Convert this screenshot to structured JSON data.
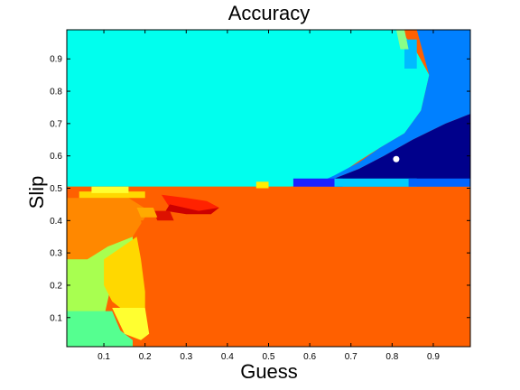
{
  "chart_data": {
    "type": "heatmap",
    "title": "Accuracy",
    "xlabel": "Guess",
    "ylabel": "Slip",
    "xlim": [
      0.01,
      0.99
    ],
    "ylim": [
      0.01,
      0.99
    ],
    "x_ticks": [
      0.1,
      0.2,
      0.3,
      0.4,
      0.5,
      0.6,
      0.7,
      0.8,
      0.9
    ],
    "y_ticks": [
      0.1,
      0.2,
      0.3,
      0.4,
      0.5,
      0.6,
      0.7,
      0.8,
      0.9
    ],
    "x_tick_labels": [
      "0.1",
      "0.2",
      "0.3",
      "0.4",
      "0.5",
      "0.6",
      "0.7",
      "0.8",
      "0.9"
    ],
    "y_tick_labels": [
      "0.1",
      "0.2",
      "0.3",
      "0.4",
      "0.5",
      "0.6",
      "0.7",
      "0.8",
      "0.9"
    ],
    "colormap": "jet",
    "grid": false,
    "legend": "none",
    "regions": [
      {
        "color": "#00ffee",
        "polygon": [
          [
            0.01,
            0.99
          ],
          [
            0.82,
            0.99
          ],
          [
            0.86,
            0.92
          ],
          [
            0.89,
            0.85
          ],
          [
            0.87,
            0.74
          ],
          [
            0.83,
            0.67
          ],
          [
            0.77,
            0.625
          ],
          [
            0.72,
            0.585
          ],
          [
            0.68,
            0.55
          ],
          [
            0.62,
            0.51
          ],
          [
            0.55,
            0.505
          ],
          [
            0.01,
            0.505
          ]
        ]
      },
      {
        "color": "#0080ff",
        "polygon": [
          [
            0.86,
            0.99
          ],
          [
            0.99,
            0.99
          ],
          [
            0.99,
            0.73
          ],
          [
            0.93,
            0.7
          ],
          [
            0.85,
            0.65
          ],
          [
            0.78,
            0.6
          ],
          [
            0.72,
            0.56
          ],
          [
            0.66,
            0.53
          ],
          [
            0.62,
            0.51
          ],
          [
            0.99,
            0.51
          ],
          [
            0.99,
            0.505
          ],
          [
            0.6,
            0.505
          ],
          [
            0.66,
            0.54
          ],
          [
            0.72,
            0.58
          ],
          [
            0.77,
            0.625
          ],
          [
            0.83,
            0.67
          ],
          [
            0.87,
            0.74
          ],
          [
            0.89,
            0.85
          ]
        ]
      },
      {
        "color": "#00008b",
        "polygon": [
          [
            0.99,
            0.73
          ],
          [
            0.99,
            0.51
          ],
          [
            0.63,
            0.51
          ],
          [
            0.66,
            0.53
          ],
          [
            0.72,
            0.56
          ],
          [
            0.78,
            0.6
          ],
          [
            0.85,
            0.65
          ],
          [
            0.93,
            0.7
          ]
        ]
      },
      {
        "color": "#ff6000",
        "polygon": [
          [
            0.01,
            0.505
          ],
          [
            0.99,
            0.505
          ],
          [
            0.99,
            0.01
          ],
          [
            0.01,
            0.01
          ]
        ]
      },
      {
        "color": "#ff8800",
        "polygon": [
          [
            0.01,
            0.47
          ],
          [
            0.16,
            0.47
          ],
          [
            0.21,
            0.43
          ],
          [
            0.17,
            0.35
          ],
          [
            0.12,
            0.31
          ],
          [
            0.05,
            0.27
          ],
          [
            0.01,
            0.27
          ]
        ]
      },
      {
        "color": "#a8ff50",
        "polygon": [
          [
            0.01,
            0.28
          ],
          [
            0.06,
            0.28
          ],
          [
            0.11,
            0.32
          ],
          [
            0.17,
            0.35
          ],
          [
            0.17,
            0.3
          ],
          [
            0.13,
            0.27
          ],
          [
            0.1,
            0.1
          ],
          [
            0.1,
            0.01
          ],
          [
            0.01,
            0.01
          ]
        ]
      },
      {
        "color": "#ffd800",
        "polygon": [
          [
            0.1,
            0.28
          ],
          [
            0.18,
            0.35
          ],
          [
            0.19,
            0.28
          ],
          [
            0.2,
            0.18
          ],
          [
            0.2,
            0.13
          ],
          [
            0.15,
            0.12
          ],
          [
            0.12,
            0.15
          ],
          [
            0.1,
            0.2
          ]
        ]
      },
      {
        "color": "#ffff30",
        "polygon": [
          [
            0.12,
            0.13
          ],
          [
            0.2,
            0.13
          ],
          [
            0.21,
            0.05
          ],
          [
            0.19,
            0.03
          ],
          [
            0.15,
            0.05
          ]
        ]
      },
      {
        "color": "#55ff90",
        "polygon": [
          [
            0.01,
            0.12
          ],
          [
            0.12,
            0.12
          ],
          [
            0.14,
            0.06
          ],
          [
            0.17,
            0.03
          ],
          [
            0.17,
            0.01
          ],
          [
            0.01,
            0.01
          ]
        ]
      },
      {
        "color": "#ff6000",
        "polygon": [
          [
            0.19,
            0.4
          ],
          [
            0.21,
            0.28
          ],
          [
            0.22,
            0.15
          ],
          [
            0.23,
            0.01
          ],
          [
            0.3,
            0.01
          ],
          [
            0.3,
            0.4
          ]
        ]
      },
      {
        "color": "#ff2200",
        "polygon": [
          [
            0.24,
            0.48
          ],
          [
            0.3,
            0.47
          ],
          [
            0.35,
            0.46
          ],
          [
            0.38,
            0.44
          ],
          [
            0.36,
            0.42
          ],
          [
            0.31,
            0.43
          ],
          [
            0.26,
            0.44
          ]
        ]
      },
      {
        "color": "#cc0000",
        "polygon": [
          [
            0.26,
            0.45
          ],
          [
            0.33,
            0.43
          ],
          [
            0.38,
            0.44
          ],
          [
            0.36,
            0.42
          ],
          [
            0.3,
            0.42
          ],
          [
            0.25,
            0.43
          ]
        ]
      },
      {
        "color": "#dd1100",
        "polygon": [
          [
            0.22,
            0.43
          ],
          [
            0.26,
            0.43
          ],
          [
            0.27,
            0.4
          ],
          [
            0.23,
            0.4
          ]
        ]
      },
      {
        "color": "#ffaa00",
        "polygon": [
          [
            0.18,
            0.44
          ],
          [
            0.22,
            0.44
          ],
          [
            0.23,
            0.41
          ],
          [
            0.19,
            0.41
          ]
        ]
      },
      {
        "color": "#ffd800",
        "polygon": [
          [
            0.04,
            0.49
          ],
          [
            0.2,
            0.49
          ],
          [
            0.2,
            0.47
          ],
          [
            0.04,
            0.47
          ]
        ]
      },
      {
        "color": "#ffff30",
        "polygon": [
          [
            0.07,
            0.505
          ],
          [
            0.16,
            0.505
          ],
          [
            0.16,
            0.485
          ],
          [
            0.07,
            0.485
          ]
        ]
      },
      {
        "color": "#ffee00",
        "polygon": [
          [
            0.47,
            0.52
          ],
          [
            0.5,
            0.52
          ],
          [
            0.5,
            0.5
          ],
          [
            0.47,
            0.5
          ]
        ]
      },
      {
        "color": "#1a22ff",
        "polygon": [
          [
            0.56,
            0.53
          ],
          [
            0.68,
            0.53
          ],
          [
            0.68,
            0.505
          ],
          [
            0.56,
            0.505
          ]
        ]
      },
      {
        "color": "#00ccff",
        "polygon": [
          [
            0.66,
            0.53
          ],
          [
            0.86,
            0.53
          ],
          [
            0.86,
            0.505
          ],
          [
            0.66,
            0.505
          ]
        ]
      },
      {
        "color": "#0066ff",
        "polygon": [
          [
            0.84,
            0.53
          ],
          [
            0.99,
            0.53
          ],
          [
            0.99,
            0.505
          ],
          [
            0.84,
            0.505
          ]
        ]
      },
      {
        "color": "#00bbff",
        "polygon": [
          [
            0.83,
            0.96
          ],
          [
            0.86,
            0.96
          ],
          [
            0.86,
            0.87
          ],
          [
            0.83,
            0.87
          ]
        ]
      },
      {
        "color": "#88ff88",
        "polygon": [
          [
            0.81,
            0.99
          ],
          [
            0.83,
            0.99
          ],
          [
            0.84,
            0.93
          ],
          [
            0.82,
            0.93
          ]
        ]
      }
    ],
    "marker": {
      "x": 0.81,
      "y": 0.59,
      "color": "#ffffff"
    }
  }
}
